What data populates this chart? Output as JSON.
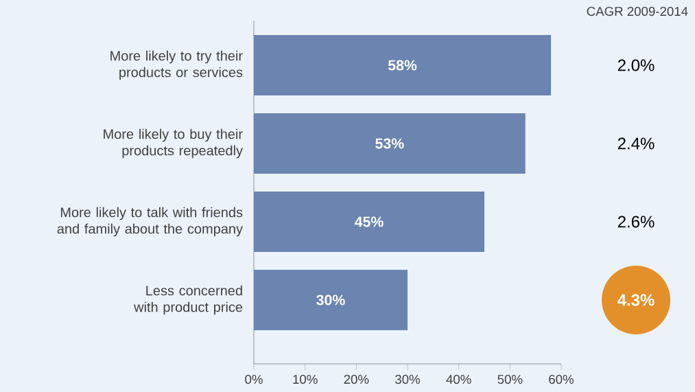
{
  "chart_data": {
    "type": "bar",
    "orientation": "horizontal",
    "categories": [
      "More likely to try their products or services",
      "More likely to buy their products repeatedly",
      "More likely to talk with friends and family about the company",
      "Less concerned with product price"
    ],
    "values": [
      58,
      53,
      45,
      30
    ],
    "value_labels": [
      "58%",
      "53%",
      "45%",
      "30%"
    ],
    "color": "#6b84b0",
    "xlim": [
      0,
      60
    ],
    "xticks": [
      {
        "value": 0,
        "label": "0%"
      },
      {
        "value": 10,
        "label": "10%"
      },
      {
        "value": 20,
        "label": "20%"
      },
      {
        "value": 30,
        "label": "30%"
      },
      {
        "value": 40,
        "label": "40%"
      },
      {
        "value": 50,
        "label": "50%"
      },
      {
        "value": 60,
        "label": "60%"
      }
    ],
    "grid": false,
    "annotations": [
      "CAGR 2009-2014",
      "2.0%",
      "2.4%",
      "2.6%",
      "4.3%"
    ]
  }
}
